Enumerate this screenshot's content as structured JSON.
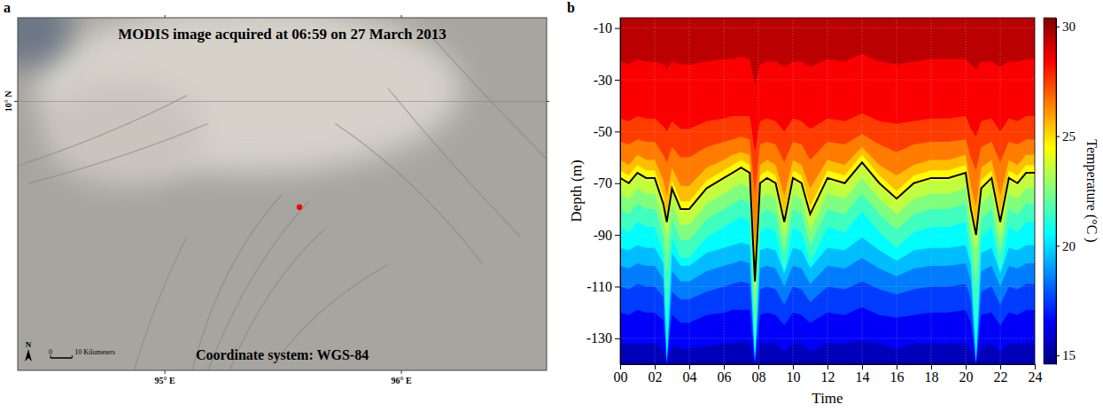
{
  "chart_data": [
    {
      "type": "map",
      "panel": "a",
      "title": "MODIS image acquired at 06:59 on 27 March 2013",
      "footnote": "Coordinate system: WGS-84",
      "xlim": [
        94.378,
        96.614
      ],
      "ylim": [
        8.82,
        10.367
      ],
      "xticks": [
        {
          "value": 95,
          "label": "95° E"
        },
        {
          "value": 96,
          "label": "96° E"
        }
      ],
      "yticks": [
        {
          "value": 10,
          "label": "10° N"
        }
      ],
      "points": [
        {
          "x": 95.569,
          "y": 9.536,
          "color": "#ff0000"
        }
      ],
      "scale_bar": {
        "ticks": [
          0,
          {
            "value": 10,
            "label": "10 Kilometers"
          }
        ]
      },
      "north_label": "N"
    },
    {
      "type": "contour",
      "panel": "b",
      "xlabel": "Time",
      "ylabel": "Depth (m)",
      "x": [
        0,
        0.5,
        1,
        1.5,
        2,
        2.5,
        2.7,
        3,
        3.5,
        4,
        5,
        6,
        6.5,
        7,
        7.5,
        7.8,
        8.1,
        8.5,
        9,
        9.5,
        10,
        10.5,
        11,
        12,
        13,
        14,
        15,
        16,
        17,
        18,
        19,
        20,
        20.3,
        20.6,
        20.9,
        21.5,
        22,
        22.5,
        23,
        23.5,
        24
      ],
      "xlim": [
        0,
        24
      ],
      "xticks": [
        {
          "value": 0,
          "label": "00"
        },
        {
          "value": 2,
          "label": "02"
        },
        {
          "value": 4,
          "label": "04"
        },
        {
          "value": 6,
          "label": "06"
        },
        {
          "value": 8,
          "label": "08"
        },
        10,
        12,
        14,
        16,
        18,
        20,
        22,
        24
      ],
      "ylim": [
        -140,
        -6
      ],
      "yticks": [
        -10,
        -30,
        -50,
        -70,
        -90,
        -110,
        -130
      ],
      "grid": true,
      "isotherms": [
        {
          "temperature": 29,
          "depths": [
            -23,
            -24,
            -22,
            -23,
            -23,
            -24,
            -26,
            -23,
            -24,
            -24,
            -23,
            -22,
            -22,
            -21,
            -22,
            -32,
            -24,
            -23,
            -23,
            -25,
            -23,
            -23,
            -25,
            -22,
            -23,
            -20,
            -23,
            -24,
            -23,
            -22,
            -22,
            -22,
            -24,
            -26,
            -23,
            -23,
            -25,
            -23,
            -23,
            -22,
            -22
          ]
        },
        {
          "temperature": 28,
          "depths": [
            -45,
            -46,
            -44,
            -45,
            -45,
            -48,
            -50,
            -46,
            -49,
            -49,
            -46,
            -45,
            -44,
            -44,
            -44,
            -58,
            -46,
            -45,
            -46,
            -50,
            -45,
            -46,
            -49,
            -45,
            -46,
            -43,
            -46,
            -47,
            -46,
            -45,
            -45,
            -44,
            -49,
            -52,
            -46,
            -45,
            -50,
            -45,
            -46,
            -44,
            -44
          ]
        },
        {
          "temperature": 27,
          "depths": [
            -54,
            -55,
            -53,
            -54,
            -54,
            -59,
            -62,
            -56,
            -60,
            -60,
            -56,
            -54,
            -53,
            -52,
            -53,
            -74,
            -55,
            -54,
            -55,
            -62,
            -54,
            -55,
            -61,
            -54,
            -55,
            -51,
            -55,
            -58,
            -55,
            -54,
            -54,
            -53,
            -60,
            -65,
            -56,
            -54,
            -62,
            -54,
            -55,
            -53,
            -53
          ]
        },
        {
          "temperature": 26,
          "depths": [
            -61,
            -63,
            -59,
            -61,
            -61,
            -69,
            -75,
            -64,
            -71,
            -71,
            -64,
            -61,
            -59,
            -58,
            -59,
            -93,
            -63,
            -61,
            -63,
            -75,
            -61,
            -63,
            -72,
            -61,
            -63,
            -56,
            -63,
            -67,
            -63,
            -61,
            -61,
            -59,
            -71,
            -79,
            -64,
            -61,
            -75,
            -61,
            -63,
            -59,
            -59
          ]
        },
        {
          "temperature": 25,
          "depths": [
            -65,
            -67,
            -63,
            -65,
            -65,
            -75,
            -82,
            -69,
            -77,
            -77,
            -69,
            -65,
            -63,
            -61,
            -63,
            -105,
            -67,
            -65,
            -67,
            -82,
            -65,
            -67,
            -79,
            -65,
            -67,
            -59,
            -67,
            -73,
            -67,
            -65,
            -65,
            -63,
            -77,
            -87,
            -69,
            -65,
            -82,
            -65,
            -67,
            -63,
            -63
          ]
        },
        {
          "temperature": 24,
          "depths": [
            -69,
            -71,
            -67,
            -69,
            -69,
            -79,
            -86,
            -73,
            -81,
            -81,
            -73,
            -69,
            -67,
            -65,
            -67,
            -109,
            -71,
            -69,
            -71,
            -86,
            -69,
            -71,
            -83,
            -69,
            -71,
            -63,
            -71,
            -77,
            -71,
            -69,
            -69,
            -67,
            -81,
            -91,
            -73,
            -69,
            -86,
            -69,
            -71,
            -67,
            -67
          ]
        },
        {
          "temperature": 23,
          "depths": [
            -74,
            -76,
            -72,
            -74,
            -74,
            -84,
            -91,
            -78,
            -86,
            -86,
            -78,
            -74,
            -72,
            -70,
            -72,
            -114,
            -76,
            -74,
            -76,
            -91,
            -74,
            -76,
            -88,
            -74,
            -76,
            -68,
            -76,
            -82,
            -76,
            -74,
            -74,
            -72,
            -86,
            -96,
            -78,
            -74,
            -91,
            -74,
            -76,
            -72,
            -72
          ]
        },
        {
          "temperature": 22,
          "depths": [
            -80,
            -82,
            -78,
            -80,
            -80,
            -90,
            -105,
            -84,
            -92,
            -92,
            -84,
            -80,
            -78,
            -76,
            -78,
            -125,
            -82,
            -80,
            -82,
            -97,
            -80,
            -82,
            -94,
            -80,
            -82,
            -74,
            -82,
            -88,
            -82,
            -80,
            -80,
            -78,
            -92,
            -110,
            -84,
            -80,
            -97,
            -80,
            -82,
            -78,
            -78
          ]
        },
        {
          "temperature": 21,
          "depths": [
            -87,
            -89,
            -85,
            -87,
            -87,
            -97,
            -125,
            -91,
            -99,
            -99,
            -91,
            -87,
            -85,
            -83,
            -85,
            -135,
            -89,
            -87,
            -89,
            -104,
            -87,
            -89,
            -101,
            -87,
            -89,
            -81,
            -89,
            -95,
            -89,
            -87,
            -87,
            -85,
            -99,
            -128,
            -91,
            -87,
            -104,
            -87,
            -89,
            -85,
            -85
          ]
        },
        {
          "temperature": 20,
          "depths": [
            -95,
            -96,
            -94,
            -95,
            -95,
            -101,
            -140,
            -97,
            -102,
            -102,
            -97,
            -95,
            -94,
            -93,
            -94,
            -140,
            -96,
            -95,
            -96,
            -105,
            -95,
            -96,
            -103,
            -95,
            -96,
            -91,
            -96,
            -100,
            -96,
            -95,
            -95,
            -94,
            -102,
            -140,
            -97,
            -95,
            -105,
            -95,
            -96,
            -94,
            -94
          ]
        },
        {
          "temperature": 19,
          "depths": [
            -102,
            -103,
            -101,
            -102,
            -102,
            -107,
            -140,
            -104,
            -108,
            -108,
            -104,
            -102,
            -101,
            -100,
            -101,
            -140,
            -103,
            -102,
            -103,
            -110,
            -102,
            -103,
            -109,
            -102,
            -103,
            -99,
            -103,
            -106,
            -103,
            -102,
            -102,
            -101,
            -108,
            -140,
            -104,
            -102,
            -110,
            -102,
            -103,
            -101,
            -101
          ]
        },
        {
          "temperature": 18,
          "depths": [
            -110,
            -111,
            -109,
            -110,
            -110,
            -114,
            -140,
            -112,
            -115,
            -115,
            -112,
            -110,
            -109,
            -108,
            -109,
            -140,
            -111,
            -110,
            -111,
            -117,
            -110,
            -111,
            -116,
            -110,
            -111,
            -108,
            -111,
            -113,
            -111,
            -110,
            -110,
            -109,
            -115,
            -140,
            -112,
            -110,
            -117,
            -110,
            -111,
            -109,
            -109
          ]
        },
        {
          "temperature": 17,
          "depths": [
            -120,
            -121,
            -119,
            -120,
            -120,
            -123,
            -140,
            -121,
            -124,
            -124,
            -121,
            -120,
            -119,
            -119,
            -119,
            -140,
            -121,
            -120,
            -121,
            -125,
            -120,
            -121,
            -124,
            -120,
            -121,
            -118,
            -121,
            -122,
            -121,
            -120,
            -120,
            -119,
            -124,
            -140,
            -121,
            -120,
            -125,
            -120,
            -121,
            -119,
            -119
          ]
        },
        {
          "temperature": 16,
          "depths": [
            -132,
            -132,
            -132,
            -132,
            -132,
            -134,
            -140,
            -133,
            -134,
            -134,
            -133,
            -132,
            -132,
            -131,
            -132,
            -140,
            -132,
            -132,
            -132,
            -135,
            -132,
            -132,
            -135,
            -132,
            -132,
            -131,
            -132,
            -134,
            -132,
            -132,
            -132,
            -132,
            -134,
            -140,
            -133,
            -132,
            -135,
            -132,
            -132,
            -132,
            -132
          ]
        }
      ],
      "series": [
        {
          "type": "line",
          "color": "#000000",
          "values": [
            -68,
            -70,
            -66,
            -68,
            -68,
            -78,
            -85,
            -72,
            -80,
            -80,
            -72,
            -68,
            -66,
            -64,
            -66,
            -108,
            -70,
            -68,
            -70,
            -85,
            -68,
            -70,
            -82,
            -68,
            -70,
            -62,
            -70,
            -76,
            -70,
            -68,
            -68,
            -66,
            -80,
            -90,
            -72,
            -68,
            -85,
            -68,
            -70,
            -66,
            -66
          ]
        }
      ],
      "colorbar": {
        "range": [
          14.6,
          30.4
        ],
        "ticks": [
          15,
          20,
          25,
          30
        ],
        "label": "Temperature (°C )"
      }
    }
  ]
}
